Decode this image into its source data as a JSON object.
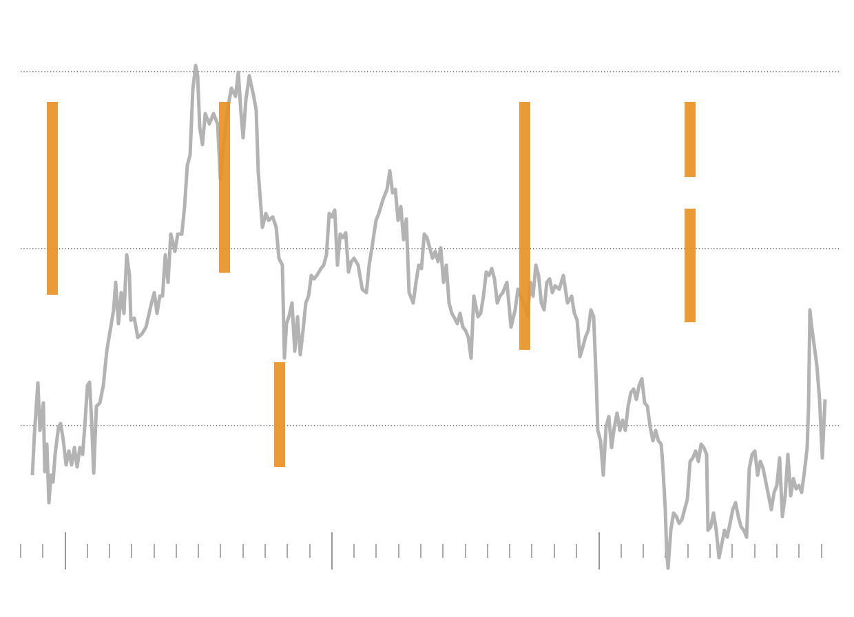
{
  "chart_data": {
    "type": "line",
    "xlim": [
      0,
      1240
    ],
    "ylim": [
      0,
      896
    ],
    "grid": true,
    "yticks": [
      278,
      535,
      792
    ],
    "xticks": [
      30,
      62,
      127,
      159,
      191,
      224,
      256,
      288,
      320,
      353,
      385,
      417,
      450,
      514,
      546,
      579,
      611,
      643,
      676,
      708,
      740,
      772,
      805,
      837,
      902,
      934,
      966,
      999,
      1031,
      1063,
      1096,
      1128,
      1160,
      1193
    ],
    "major_xticks": [
      95,
      482,
      870
    ],
    "x": [
      47,
      50,
      55,
      58,
      63,
      65,
      68,
      71,
      74,
      77,
      80,
      85,
      88,
      92,
      96,
      100,
      104,
      108,
      112,
      116,
      120,
      123,
      127,
      130,
      133,
      136,
      140,
      145,
      150,
      155,
      160,
      165,
      168,
      172,
      176,
      180,
      184,
      188,
      190,
      195,
      200,
      206,
      212,
      220,
      224,
      228,
      232,
      236,
      240,
      244,
      248,
      254,
      258,
      264,
      268,
      272,
      276,
      280,
      284,
      287,
      290,
      294,
      298,
      304,
      310,
      316,
      320,
      324,
      328,
      332,
      336,
      342,
      346,
      350,
      353,
      357,
      362,
      368,
      372,
      375,
      378,
      381,
      386,
      390,
      396,
      401,
      405,
      410,
      413,
      416,
      420,
      424,
      428,
      432,
      436,
      440,
      444,
      448,
      452,
      456,
      460,
      466,
      470,
      474,
      478,
      482,
      486,
      490,
      494,
      498,
      502,
      506,
      510,
      514,
      520,
      526,
      532,
      536,
      540,
      546,
      550,
      556,
      562,
      566,
      570,
      574,
      578,
      582,
      586,
      590,
      594,
      600,
      604,
      608,
      612,
      616,
      620,
      624,
      628,
      632,
      636,
      640,
      644,
      648,
      652,
      656,
      660,
      664,
      668,
      672,
      676,
      680,
      684,
      688,
      694,
      698,
      702,
      706,
      710,
      714,
      718,
      722,
      726,
      730,
      736,
      742,
      748,
      752,
      756,
      762,
      766,
      770,
      774,
      778,
      782,
      786,
      790,
      794,
      798,
      802,
      806,
      812,
      818,
      824,
      830,
      834,
      838,
      842,
      846,
      850,
      854,
      858,
      862,
      866,
      868,
      872,
      876,
      880,
      884,
      888,
      892,
      896,
      900,
      904,
      908,
      912,
      916,
      920,
      924,
      928,
      932,
      936,
      940,
      944,
      948,
      952,
      956,
      960,
      962,
      966,
      968,
      970,
      974,
      978,
      982,
      986,
      990,
      994,
      998,
      1002,
      1006,
      1010,
      1014,
      1018,
      1022,
      1026,
      1028,
      1032,
      1036,
      1040,
      1044,
      1048,
      1052,
      1056,
      1060,
      1064,
      1068,
      1072,
      1076,
      1080,
      1084,
      1088,
      1092,
      1096,
      1100,
      1104,
      1108,
      1112,
      1116,
      1120,
      1124,
      1128,
      1132,
      1136,
      1140,
      1144,
      1148,
      1152,
      1156,
      1160,
      1164,
      1168,
      1172,
      1174,
      1176,
      1178,
      1182,
      1186,
      1190,
      1194,
      1198
    ],
    "series": [
      {
        "color": "#b3b3b3",
        "values": [
          206,
          266,
          340,
          271,
          311,
          211,
          251,
          166,
          206,
          196,
          236,
          276,
          281,
          256,
          221,
          241,
          221,
          246,
          218,
          246,
          236,
          276,
          336,
          341,
          286,
          209,
          306,
          311,
          336,
          386,
          416,
          446,
          486,
          426,
          471,
          441,
          526,
          496,
          431,
          434,
          406,
          411,
          421,
          456,
          471,
          441,
          466,
          466,
          526,
          486,
          556,
          531,
          556,
          556,
          596,
          656,
          671,
          766,
          801,
          786,
          711,
          686,
          731,
          716,
          731,
          716,
          636,
          676,
          716,
          746,
          768,
          756,
          791,
          731,
          696,
          751,
          786,
          758,
          736,
          646,
          606,
          566,
          586,
          576,
          581,
          566,
          521,
          511,
          376,
          426,
          438,
          456,
          386,
          436,
          381,
          416,
          456,
          466,
          496,
          491,
          496,
          506,
          511,
          526,
          586,
          581,
          591,
          511,
          556,
          551,
          558,
          501,
          516,
          521,
          511,
          476,
          471,
          511,
          536,
          576,
          586,
          606,
          621,
          648,
          616,
          621,
          576,
          596,
          548,
          578,
          471,
          456,
          486,
          511,
          506,
          556,
          551,
          536,
          521,
          531,
          516,
          536,
          486,
          511,
          456,
          441,
          434,
          426,
          441,
          421,
          416,
          406,
          376,
          466,
          436,
          441,
          466,
          501,
          496,
          506,
          491,
          456,
          466,
          471,
          486,
          421,
          446,
          476,
          466,
          451,
          436,
          486,
          466,
          511,
          496,
          456,
          446,
          486,
          491,
          471,
          481,
          476,
          496,
          456,
          466,
          441,
          431,
          378,
          391,
          406,
          416,
          446,
          436,
          336,
          271,
          256,
          206,
          276,
          291,
          246,
          276,
          296,
          271,
          286,
          271,
          306,
          326,
          331,
          316,
          336,
          346,
          311,
          306,
          276,
          256,
          271,
          256,
          251,
          226,
          156,
          96,
          71,
          126,
          151,
          146,
          136,
          141,
          156,
          171,
          226,
          231,
          241,
          226,
          251,
          246,
          236,
          126,
          131,
          151,
          126,
          86,
          106,
          126,
          116,
          136,
          156,
          166,
          146,
          131,
          126,
          116,
          216,
          236,
          241,
          206,
          226,
          216,
          196,
          176,
          156,
          181,
          191,
          231,
          146,
          176,
          236,
          176,
          201,
          186,
          191,
          181,
          211,
          246,
          306,
          446,
          426,
          396,
          366,
          316,
          231,
          316
        ]
      }
    ],
    "ranges": {
      "color": "#e9901f",
      "x": [
        76,
        326,
        406,
        762,
        1002,
        1002
      ],
      "low": [
        468,
        500,
        218,
        388,
        639,
        428
      ],
      "high": [
        748,
        748,
        370,
        748,
        748,
        593
      ]
    }
  }
}
